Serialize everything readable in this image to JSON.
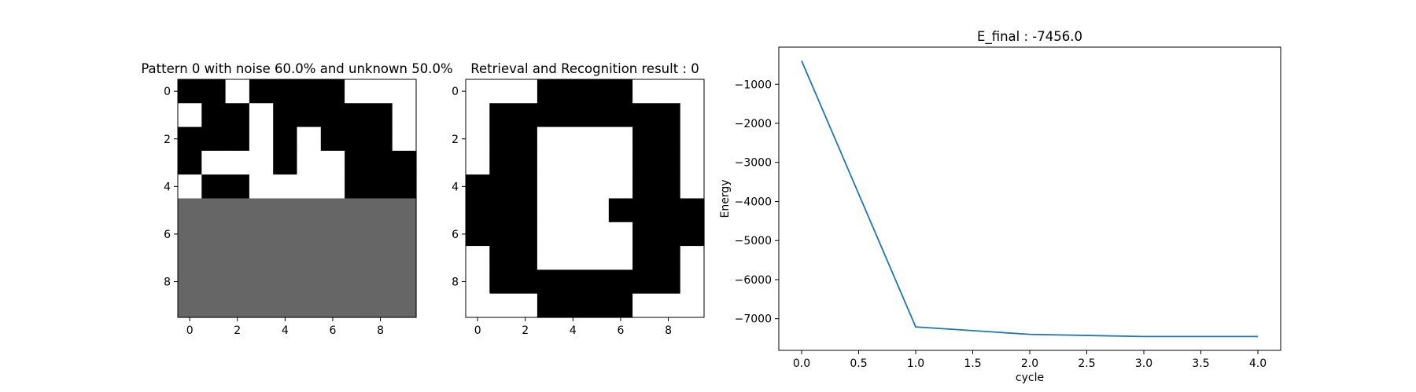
{
  "chart_data": [
    {
      "type": "heatmap",
      "title": "Pattern 0 with noise 60.0% and unknown 50.0%",
      "x_ticks": [
        "0",
        "2",
        "4",
        "6",
        "8"
      ],
      "y_ticks": [
        "0",
        "2",
        "4",
        "6",
        "8"
      ],
      "colors": {
        "-1": "#ffffff",
        "0": "#666666",
        "1": "#000000"
      },
      "grid": [
        [
          1,
          1,
          -1,
          1,
          1,
          1,
          1,
          -1,
          -1,
          -1
        ],
        [
          -1,
          1,
          1,
          -1,
          1,
          1,
          1,
          1,
          1,
          -1
        ],
        [
          1,
          1,
          1,
          -1,
          1,
          -1,
          1,
          1,
          1,
          -1
        ],
        [
          1,
          -1,
          -1,
          -1,
          1,
          -1,
          -1,
          1,
          1,
          1
        ],
        [
          -1,
          1,
          1,
          -1,
          -1,
          -1,
          -1,
          1,
          1,
          1
        ],
        [
          0,
          0,
          0,
          0,
          0,
          0,
          0,
          0,
          0,
          0
        ],
        [
          0,
          0,
          0,
          0,
          0,
          0,
          0,
          0,
          0,
          0
        ],
        [
          0,
          0,
          0,
          0,
          0,
          0,
          0,
          0,
          0,
          0
        ],
        [
          0,
          0,
          0,
          0,
          0,
          0,
          0,
          0,
          0,
          0
        ],
        [
          0,
          0,
          0,
          0,
          0,
          0,
          0,
          0,
          0,
          0
        ]
      ]
    },
    {
      "type": "heatmap",
      "title": "Retrieval and Recognition result : 0",
      "x_ticks": [
        "0",
        "2",
        "4",
        "6",
        "8"
      ],
      "y_ticks": [
        "0",
        "2",
        "4",
        "6",
        "8"
      ],
      "colors": {
        "-1": "#ffffff",
        "0": "#666666",
        "1": "#000000"
      },
      "grid": [
        [
          -1,
          -1,
          -1,
          1,
          1,
          1,
          1,
          -1,
          -1,
          -1
        ],
        [
          -1,
          1,
          1,
          1,
          1,
          1,
          1,
          1,
          1,
          -1
        ],
        [
          -1,
          1,
          1,
          -1,
          -1,
          -1,
          -1,
          1,
          1,
          -1
        ],
        [
          -1,
          1,
          1,
          -1,
          -1,
          -1,
          -1,
          1,
          1,
          -1
        ],
        [
          1,
          1,
          1,
          -1,
          -1,
          -1,
          -1,
          1,
          1,
          -1
        ],
        [
          1,
          1,
          1,
          -1,
          -1,
          -1,
          1,
          1,
          1,
          1
        ],
        [
          1,
          1,
          1,
          -1,
          -1,
          -1,
          -1,
          1,
          1,
          1
        ],
        [
          -1,
          1,
          1,
          -1,
          -1,
          -1,
          -1,
          1,
          1,
          -1
        ],
        [
          -1,
          1,
          1,
          1,
          1,
          1,
          1,
          1,
          1,
          -1
        ],
        [
          -1,
          -1,
          -1,
          1,
          1,
          1,
          1,
          -1,
          -1,
          -1
        ]
      ]
    },
    {
      "type": "line",
      "title": "E_final : -7456.0",
      "xlabel": "cycle",
      "ylabel": "Energy",
      "x": [
        0,
        1,
        2,
        3,
        4
      ],
      "series": [
        {
          "values": [
            -400,
            -7210,
            -7400,
            -7456,
            -7456
          ],
          "color": "#1f77b4"
        }
      ],
      "xlim": [
        -0.2,
        4.2
      ],
      "ylim": [
        -7810,
        -50
      ],
      "x_ticks": [
        0.0,
        0.5,
        1.0,
        1.5,
        2.0,
        2.5,
        3.0,
        3.5,
        4.0
      ],
      "x_tick_labels": [
        "0.0",
        "0.5",
        "1.0",
        "1.5",
        "2.0",
        "2.5",
        "3.0",
        "3.5",
        "4.0"
      ],
      "y_ticks": [
        -1000,
        -2000,
        -3000,
        -4000,
        -5000,
        -6000,
        -7000
      ],
      "y_tick_labels": [
        "−1000",
        "−2000",
        "−3000",
        "−4000",
        "−5000",
        "−6000",
        "−7000"
      ],
      "grid": false
    }
  ]
}
